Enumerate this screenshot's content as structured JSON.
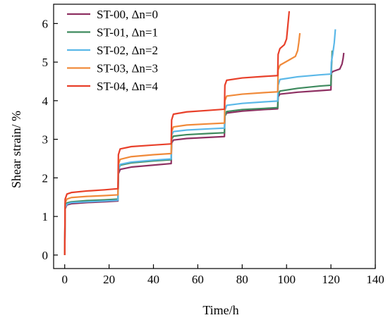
{
  "chart_data": {
    "type": "line",
    "xlabel": "Time/h",
    "ylabel": "Shear strain/ %",
    "xlim": [
      -5,
      140
    ],
    "ylim": [
      -0.35,
      6.5
    ],
    "xticks": [
      0,
      20,
      40,
      60,
      80,
      100,
      120,
      140
    ],
    "yticks": [
      0,
      1,
      2,
      3,
      4,
      5,
      6
    ],
    "grid": false,
    "legend_position": "top-left",
    "series": [
      {
        "name": "ST-00, Δn=0",
        "color": "#8e3062",
        "points": [
          [
            0,
            0
          ],
          [
            0.2,
            1.2
          ],
          [
            1,
            1.3
          ],
          [
            3,
            1.33
          ],
          [
            10,
            1.36
          ],
          [
            18,
            1.38
          ],
          [
            24,
            1.4
          ],
          [
            24.2,
            2.1
          ],
          [
            25,
            2.22
          ],
          [
            30,
            2.28
          ],
          [
            40,
            2.33
          ],
          [
            48,
            2.37
          ],
          [
            48.2,
            2.9
          ],
          [
            49,
            2.98
          ],
          [
            55,
            3.02
          ],
          [
            65,
            3.05
          ],
          [
            72,
            3.07
          ],
          [
            72.2,
            3.6
          ],
          [
            73,
            3.68
          ],
          [
            80,
            3.73
          ],
          [
            90,
            3.77
          ],
          [
            96,
            3.79
          ],
          [
            96.2,
            4.1
          ],
          [
            97,
            4.17
          ],
          [
            105,
            4.22
          ],
          [
            115,
            4.26
          ],
          [
            120,
            4.28
          ],
          [
            120.2,
            4.72
          ],
          [
            121,
            4.76
          ],
          [
            124,
            4.82
          ],
          [
            125,
            4.95
          ],
          [
            125.5,
            5.1
          ],
          [
            125.8,
            5.24
          ]
        ]
      },
      {
        "name": "ST-01, Δn=1",
        "color": "#3e8a5e",
        "points": [
          [
            0,
            0
          ],
          [
            0.2,
            1.25
          ],
          [
            1,
            1.35
          ],
          [
            3,
            1.38
          ],
          [
            10,
            1.41
          ],
          [
            18,
            1.43
          ],
          [
            24,
            1.45
          ],
          [
            24.2,
            2.2
          ],
          [
            25,
            2.33
          ],
          [
            30,
            2.39
          ],
          [
            40,
            2.44
          ],
          [
            48,
            2.47
          ],
          [
            48.2,
            3.0
          ],
          [
            49,
            3.08
          ],
          [
            55,
            3.12
          ],
          [
            65,
            3.15
          ],
          [
            72,
            3.17
          ],
          [
            72.2,
            3.6
          ],
          [
            73,
            3.72
          ],
          [
            80,
            3.77
          ],
          [
            90,
            3.8
          ],
          [
            96,
            3.82
          ],
          [
            96.2,
            4.15
          ],
          [
            97,
            4.25
          ],
          [
            105,
            4.32
          ],
          [
            115,
            4.38
          ],
          [
            120,
            4.4
          ],
          [
            120.2,
            4.8
          ],
          [
            120.6,
            5.3
          ]
        ]
      },
      {
        "name": "ST-02, Δn=2",
        "color": "#5bb8e8",
        "points": [
          [
            0,
            0
          ],
          [
            0.2,
            1.22
          ],
          [
            1,
            1.32
          ],
          [
            3,
            1.36
          ],
          [
            10,
            1.38
          ],
          [
            18,
            1.4
          ],
          [
            24,
            1.42
          ],
          [
            24.2,
            2.2
          ],
          [
            25,
            2.35
          ],
          [
            30,
            2.41
          ],
          [
            40,
            2.46
          ],
          [
            48,
            2.49
          ],
          [
            48.2,
            3.1
          ],
          [
            49,
            3.2
          ],
          [
            55,
            3.24
          ],
          [
            65,
            3.27
          ],
          [
            72,
            3.29
          ],
          [
            72.2,
            3.75
          ],
          [
            73,
            3.88
          ],
          [
            80,
            3.93
          ],
          [
            90,
            3.97
          ],
          [
            96,
            3.99
          ],
          [
            96.2,
            4.4
          ],
          [
            97,
            4.55
          ],
          [
            105,
            4.62
          ],
          [
            115,
            4.67
          ],
          [
            120,
            4.69
          ],
          [
            120.2,
            5.0
          ],
          [
            120.8,
            5.2
          ],
          [
            121.5,
            5.5
          ],
          [
            122,
            5.85
          ]
        ]
      },
      {
        "name": "ST-03, Δn=3",
        "color": "#f08a3a",
        "points": [
          [
            0,
            0
          ],
          [
            0.2,
            1.35
          ],
          [
            1,
            1.45
          ],
          [
            3,
            1.49
          ],
          [
            10,
            1.52
          ],
          [
            18,
            1.54
          ],
          [
            24,
            1.56
          ],
          [
            24.2,
            2.35
          ],
          [
            25,
            2.48
          ],
          [
            30,
            2.55
          ],
          [
            40,
            2.6
          ],
          [
            48,
            2.63
          ],
          [
            48.2,
            3.2
          ],
          [
            49,
            3.32
          ],
          [
            55,
            3.37
          ],
          [
            65,
            3.4
          ],
          [
            72,
            3.42
          ],
          [
            72.2,
            4.0
          ],
          [
            73,
            4.12
          ],
          [
            80,
            4.17
          ],
          [
            90,
            4.21
          ],
          [
            96,
            4.23
          ],
          [
            96.2,
            4.8
          ],
          [
            97,
            4.92
          ],
          [
            101,
            5.05
          ],
          [
            104,
            5.15
          ],
          [
            105,
            5.3
          ],
          [
            105.5,
            5.5
          ],
          [
            106,
            5.75
          ]
        ]
      },
      {
        "name": "ST-04, Δn=4",
        "color": "#e8402a",
        "points": [
          [
            0,
            0
          ],
          [
            0.2,
            1.45
          ],
          [
            1,
            1.58
          ],
          [
            3,
            1.62
          ],
          [
            10,
            1.66
          ],
          [
            18,
            1.69
          ],
          [
            24,
            1.72
          ],
          [
            24.2,
            2.6
          ],
          [
            25,
            2.75
          ],
          [
            30,
            2.81
          ],
          [
            40,
            2.85
          ],
          [
            48,
            2.88
          ],
          [
            48.2,
            3.5
          ],
          [
            49,
            3.65
          ],
          [
            55,
            3.71
          ],
          [
            65,
            3.75
          ],
          [
            72,
            3.78
          ],
          [
            72.2,
            4.4
          ],
          [
            73,
            4.53
          ],
          [
            80,
            4.59
          ],
          [
            90,
            4.63
          ],
          [
            96,
            4.65
          ],
          [
            96.2,
            5.2
          ],
          [
            97,
            5.35
          ],
          [
            99,
            5.45
          ],
          [
            100,
            5.6
          ],
          [
            100.5,
            5.9
          ],
          [
            101,
            6.2
          ],
          [
            101.2,
            6.32
          ]
        ]
      }
    ]
  }
}
